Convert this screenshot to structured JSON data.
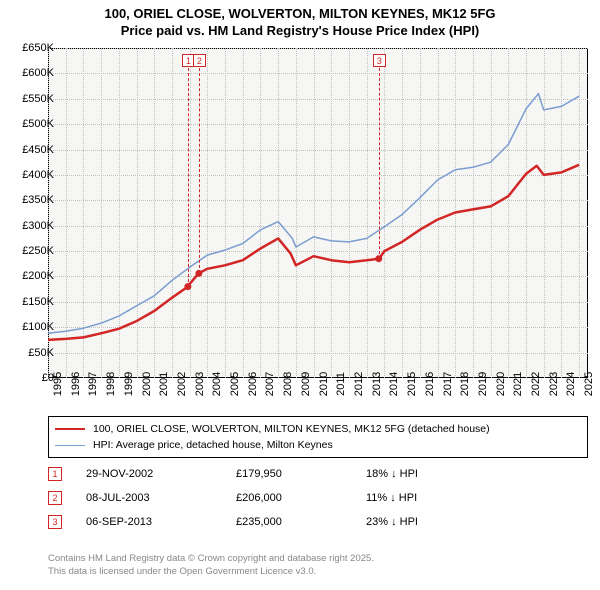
{
  "title": {
    "line1": "100, ORIEL CLOSE, WOLVERTON, MILTON KEYNES, MK12 5FG",
    "line2": "Price paid vs. HM Land Registry's House Price Index (HPI)"
  },
  "chart": {
    "type": "line",
    "background_color": "#f6f6f4",
    "grid_color": "#bfbfbf",
    "border_color": "#000000",
    "ylim": [
      0,
      650000
    ],
    "ytick_step": 50000,
    "ytick_labels": [
      "£0",
      "£50K",
      "£100K",
      "£150K",
      "£200K",
      "£250K",
      "£300K",
      "£350K",
      "£400K",
      "£450K",
      "£500K",
      "£550K",
      "£600K",
      "£650K"
    ],
    "xlim": [
      1995,
      2025.5
    ],
    "xtick_years": [
      1995,
      1996,
      1997,
      1998,
      1999,
      2000,
      2001,
      2002,
      2003,
      2004,
      2005,
      2006,
      2007,
      2008,
      2009,
      2010,
      2011,
      2012,
      2013,
      2014,
      2015,
      2016,
      2017,
      2018,
      2019,
      2020,
      2021,
      2022,
      2023,
      2024,
      2025
    ],
    "series": {
      "price_paid": {
        "label": "100, ORIEL CLOSE, WOLVERTON, MILTON KEYNES, MK12 5FG (detached house)",
        "color": "#d22626",
        "line_width": 2.5,
        "points": [
          [
            1995,
            75000
          ],
          [
            1996,
            77000
          ],
          [
            1997,
            80000
          ],
          [
            1998,
            88000
          ],
          [
            1999,
            97000
          ],
          [
            2000,
            112000
          ],
          [
            2001,
            132000
          ],
          [
            2002,
            158000
          ],
          [
            2002.9,
            179950
          ],
          [
            2003,
            185000
          ],
          [
            2003.5,
            206000
          ],
          [
            2004,
            215000
          ],
          [
            2005,
            222000
          ],
          [
            2006,
            232000
          ],
          [
            2007,
            255000
          ],
          [
            2008,
            275000
          ],
          [
            2008.7,
            245000
          ],
          [
            2009,
            222000
          ],
          [
            2010,
            240000
          ],
          [
            2011,
            232000
          ],
          [
            2012,
            228000
          ],
          [
            2013,
            232000
          ],
          [
            2013.7,
            235000
          ],
          [
            2014,
            250000
          ],
          [
            2015,
            268000
          ],
          [
            2016,
            292000
          ],
          [
            2017,
            312000
          ],
          [
            2018,
            326000
          ],
          [
            2019,
            332000
          ],
          [
            2020,
            338000
          ],
          [
            2021,
            358000
          ],
          [
            2022,
            402000
          ],
          [
            2022.6,
            418000
          ],
          [
            2023,
            400000
          ],
          [
            2024,
            405000
          ],
          [
            2025,
            420000
          ]
        ],
        "markers": [
          {
            "x": 2002.9,
            "y": 179950
          },
          {
            "x": 2003.52,
            "y": 206000
          },
          {
            "x": 2013.68,
            "y": 235000
          }
        ]
      },
      "hpi": {
        "label": "HPI: Average price, detached house, Milton Keynes",
        "color": "#7a9dd0",
        "line_width": 1.5,
        "points": [
          [
            1995,
            88000
          ],
          [
            1996,
            92000
          ],
          [
            1997,
            98000
          ],
          [
            1998,
            108000
          ],
          [
            1999,
            122000
          ],
          [
            2000,
            142000
          ],
          [
            2001,
            162000
          ],
          [
            2002,
            192000
          ],
          [
            2003,
            218000
          ],
          [
            2004,
            242000
          ],
          [
            2005,
            252000
          ],
          [
            2006,
            265000
          ],
          [
            2007,
            292000
          ],
          [
            2008,
            308000
          ],
          [
            2008.8,
            275000
          ],
          [
            2009,
            258000
          ],
          [
            2010,
            278000
          ],
          [
            2011,
            270000
          ],
          [
            2012,
            268000
          ],
          [
            2013,
            275000
          ],
          [
            2014,
            298000
          ],
          [
            2015,
            322000
          ],
          [
            2016,
            355000
          ],
          [
            2017,
            390000
          ],
          [
            2018,
            410000
          ],
          [
            2019,
            415000
          ],
          [
            2020,
            425000
          ],
          [
            2021,
            460000
          ],
          [
            2022,
            530000
          ],
          [
            2022.7,
            560000
          ],
          [
            2023,
            528000
          ],
          [
            2024,
            535000
          ],
          [
            2025,
            555000
          ]
        ]
      }
    },
    "callouts": [
      {
        "n": "1",
        "x": 2002.9
      },
      {
        "n": "2",
        "x": 2003.52
      },
      {
        "n": "3",
        "x": 2013.68
      }
    ]
  },
  "legend": {
    "items": [
      {
        "series": "price_paid"
      },
      {
        "series": "hpi"
      }
    ]
  },
  "transactions": [
    {
      "n": "1",
      "date": "29-NOV-2002",
      "price": "£179,950",
      "delta": "18% ↓ HPI"
    },
    {
      "n": "2",
      "date": "08-JUL-2003",
      "price": "£206,000",
      "delta": "11% ↓ HPI"
    },
    {
      "n": "3",
      "date": "06-SEP-2013",
      "price": "£235,000",
      "delta": "23% ↓ HPI"
    }
  ],
  "footer": {
    "line1": "Contains HM Land Registry data © Crown copyright and database right 2025.",
    "line2": "This data is licensed under the Open Government Licence v3.0."
  }
}
